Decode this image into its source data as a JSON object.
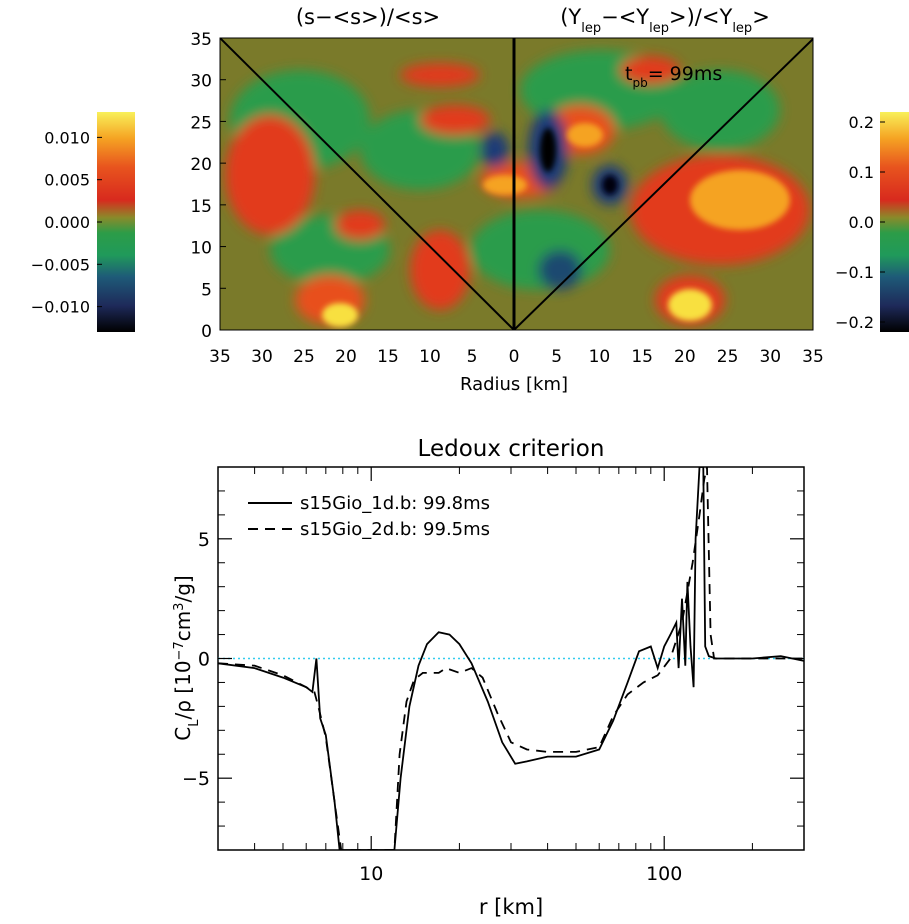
{
  "top_panel": {
    "title_left": "(s−<s>)/<s>",
    "title_right_parts": [
      "(Y",
      "lep",
      "−<Y",
      "lep",
      ">)/<Y",
      "lep",
      ">"
    ],
    "time_label": "99ms",
    "time_label_prefix": "t",
    "time_label_sub": "pb",
    "time_label_eq": "=",
    "xlabel": "Radius [km]",
    "x_ticks_left": [
      "35",
      "30",
      "25",
      "20",
      "15",
      "10",
      "5",
      "0"
    ],
    "x_ticks_right": [
      "0",
      "5",
      "10",
      "15",
      "20",
      "25",
      "30",
      "35"
    ],
    "y_ticks": [
      "0",
      "5",
      "10",
      "15",
      "20",
      "25",
      "30",
      "35"
    ],
    "colorbar_left": {
      "ticks": [
        "0.010",
        "0.005",
        "0.000",
        "−0.005",
        "−0.010"
      ],
      "range": [
        -0.013,
        0.013
      ]
    },
    "colorbar_right": {
      "ticks": [
        "0.2",
        "0.1",
        "0.0",
        "−0.1",
        "−0.2"
      ],
      "range": [
        -0.22,
        0.22
      ]
    },
    "colors": {
      "background": "#7a7a2a",
      "hot": "#e8321e",
      "warm": "#f29a1e",
      "yellow": "#f7e23a",
      "green": "#28a050",
      "cold": "#1e3c78",
      "black": "#000000"
    }
  },
  "chart_data": {
    "type": "line",
    "title": "Ledoux criterion",
    "xlabel": "r [km]",
    "ylabel_parts": [
      "C",
      "L",
      "/ρ [10",
      "−7",
      "cm",
      "3",
      "/g]"
    ],
    "xscale": "log",
    "xlim": [
      3,
      300
    ],
    "ylim": [
      -8,
      8
    ],
    "x_ticks": [
      "10",
      "100"
    ],
    "y_ticks": [
      "−5",
      "0",
      "5"
    ],
    "zero_line_color": "#33ccee",
    "legend_position": "top-left",
    "series": [
      {
        "name": "s15Gio_1d.b: 99.8ms",
        "style": "solid",
        "points": [
          [
            3,
            -0.2
          ],
          [
            4,
            -0.4
          ],
          [
            5,
            -0.8
          ],
          [
            6,
            -1.2
          ],
          [
            6.3,
            -1.4
          ],
          [
            6.5,
            0.0
          ],
          [
            6.7,
            -2.5
          ],
          [
            7,
            -3.2
          ],
          [
            7.5,
            -6.0
          ],
          [
            7.8,
            -8
          ],
          [
            12,
            -8
          ],
          [
            12.6,
            -5.0
          ],
          [
            13.5,
            -2.0
          ],
          [
            14.5,
            -0.3
          ],
          [
            15.5,
            0.6
          ],
          [
            17,
            1.1
          ],
          [
            18.5,
            1.0
          ],
          [
            20,
            0.6
          ],
          [
            22,
            -0.2
          ],
          [
            25,
            -1.8
          ],
          [
            28,
            -3.5
          ],
          [
            31,
            -4.4
          ],
          [
            34,
            -4.3
          ],
          [
            40,
            -4.1
          ],
          [
            50,
            -4.1
          ],
          [
            60,
            -3.8
          ],
          [
            67,
            -2.6
          ],
          [
            75,
            -1.0
          ],
          [
            82,
            0.3
          ],
          [
            90,
            0.5
          ],
          [
            95,
            -0.4
          ],
          [
            100,
            0.5
          ],
          [
            105,
            1.0
          ],
          [
            110,
            1.5
          ],
          [
            112,
            -0.4
          ],
          [
            115,
            2.5
          ],
          [
            118,
            -0.3
          ],
          [
            120,
            3.2
          ],
          [
            123,
            0.5
          ],
          [
            126,
            -1.2
          ],
          [
            128,
            5.0
          ],
          [
            132,
            8
          ],
          [
            136,
            8
          ],
          [
            138,
            0.5
          ],
          [
            142,
            0.1
          ],
          [
            150,
            0.0
          ],
          [
            200,
            0.0
          ],
          [
            250,
            0.1
          ],
          [
            300,
            -0.1
          ]
        ]
      },
      {
        "name": "s15Gio_2d.b: 99.5ms",
        "style": "dashed",
        "points": [
          [
            3,
            -0.2
          ],
          [
            4,
            -0.3
          ],
          [
            5,
            -0.7
          ],
          [
            6,
            -1.2
          ],
          [
            6.4,
            -1.4
          ],
          [
            6.6,
            -2.0
          ],
          [
            7,
            -3.3
          ],
          [
            7.5,
            -6.0
          ],
          [
            7.9,
            -8
          ],
          [
            12,
            -8
          ],
          [
            12.5,
            -4.0
          ],
          [
            13.2,
            -1.8
          ],
          [
            14,
            -0.9
          ],
          [
            15,
            -0.6
          ],
          [
            17,
            -0.6
          ],
          [
            18,
            -0.4
          ],
          [
            20,
            -0.6
          ],
          [
            22,
            -0.4
          ],
          [
            24,
            -0.8
          ],
          [
            27,
            -2.3
          ],
          [
            30,
            -3.5
          ],
          [
            34,
            -3.8
          ],
          [
            40,
            -3.9
          ],
          [
            50,
            -3.9
          ],
          [
            60,
            -3.7
          ],
          [
            67,
            -2.4
          ],
          [
            75,
            -1.5
          ],
          [
            85,
            -1.0
          ],
          [
            95,
            -0.7
          ],
          [
            105,
            0.0
          ],
          [
            115,
            1.5
          ],
          [
            125,
            4.0
          ],
          [
            132,
            6.0
          ],
          [
            137,
            7.5
          ],
          [
            140,
            8
          ],
          [
            144,
            1.0
          ],
          [
            148,
            0.0
          ],
          [
            200,
            0.0
          ],
          [
            250,
            0.0
          ],
          [
            300,
            0.0
          ]
        ]
      }
    ]
  }
}
